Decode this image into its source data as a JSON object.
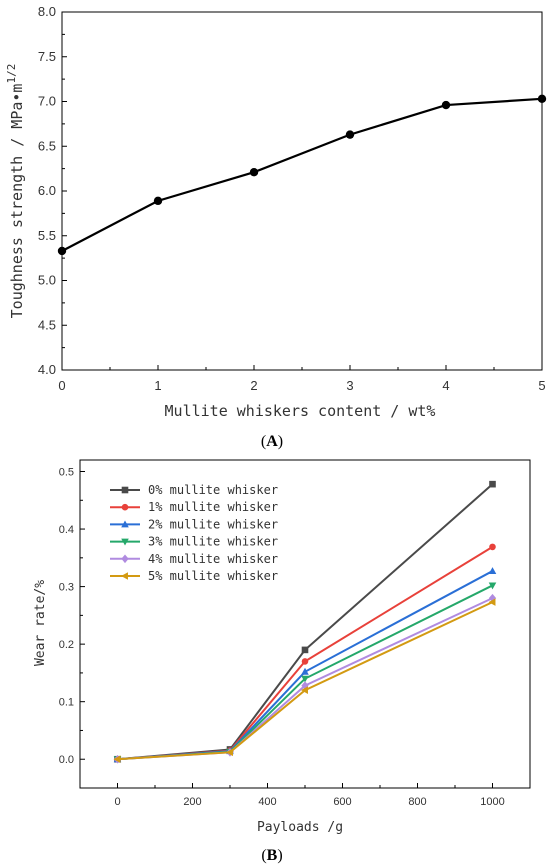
{
  "chart_data": [
    {
      "type": "line",
      "panel_label": "(A)",
      "panel_letter": "A",
      "xlabel": "Mullite whiskers content / wt%",
      "ylabel": "Toughness strength / MPa•m",
      "ylabel_sup": "1/2",
      "xlim": [
        0,
        5
      ],
      "ylim": [
        4.0,
        8.0
      ],
      "x_ticks": [
        "0",
        "1",
        "2",
        "3",
        "4",
        "5"
      ],
      "y_ticks": [
        "4.0",
        "4.5",
        "5.0",
        "5.5",
        "6.0",
        "6.5",
        "7.0",
        "7.5",
        "8.0"
      ],
      "x": [
        0,
        1,
        2,
        3,
        4,
        5
      ],
      "series": [
        {
          "values": [
            5.33,
            5.89,
            6.21,
            6.63,
            6.96,
            7.03
          ],
          "color": "#000000",
          "marker": "circle"
        }
      ],
      "grid": false
    },
    {
      "type": "line",
      "panel_label": "(B)",
      "panel_letter": "B",
      "xlabel": "Payloads /g",
      "ylabel": "Wear rate/%",
      "xlim": [
        -100,
        1100
      ],
      "ylim": [
        -0.05,
        0.52
      ],
      "x_ticks": [
        "0",
        "200",
        "400",
        "600",
        "800",
        "1000"
      ],
      "y_ticks": [
        "0.0",
        "0.1",
        "0.2",
        "0.3",
        "0.4",
        "0.5"
      ],
      "x": [
        0,
        300,
        500,
        1000
      ],
      "legend_position": "top-left",
      "series": [
        {
          "name": "0% mullite whisker",
          "values": [
            0.0,
            0.017,
            0.19,
            0.478
          ],
          "color": "#4a4a4a",
          "marker": "square"
        },
        {
          "name": "1% mullite whisker",
          "values": [
            0.0,
            0.015,
            0.17,
            0.369
          ],
          "color": "#e8413a",
          "marker": "circle"
        },
        {
          "name": "2% mullite whisker",
          "values": [
            0.0,
            0.014,
            0.152,
            0.327
          ],
          "color": "#2a6fd6",
          "marker": "triangle-up"
        },
        {
          "name": "3% mullite whisker",
          "values": [
            0.0,
            0.013,
            0.14,
            0.302
          ],
          "color": "#25a86a",
          "marker": "triangle-down"
        },
        {
          "name": "4% mullite whisker",
          "values": [
            0.0,
            0.012,
            0.128,
            0.28
          ],
          "color": "#b08be0",
          "marker": "diamond"
        },
        {
          "name": "5% mullite whisker",
          "values": [
            0.0,
            0.012,
            0.12,
            0.273
          ],
          "color": "#d39a12",
          "marker": "triangle-left"
        }
      ],
      "grid": false
    }
  ]
}
